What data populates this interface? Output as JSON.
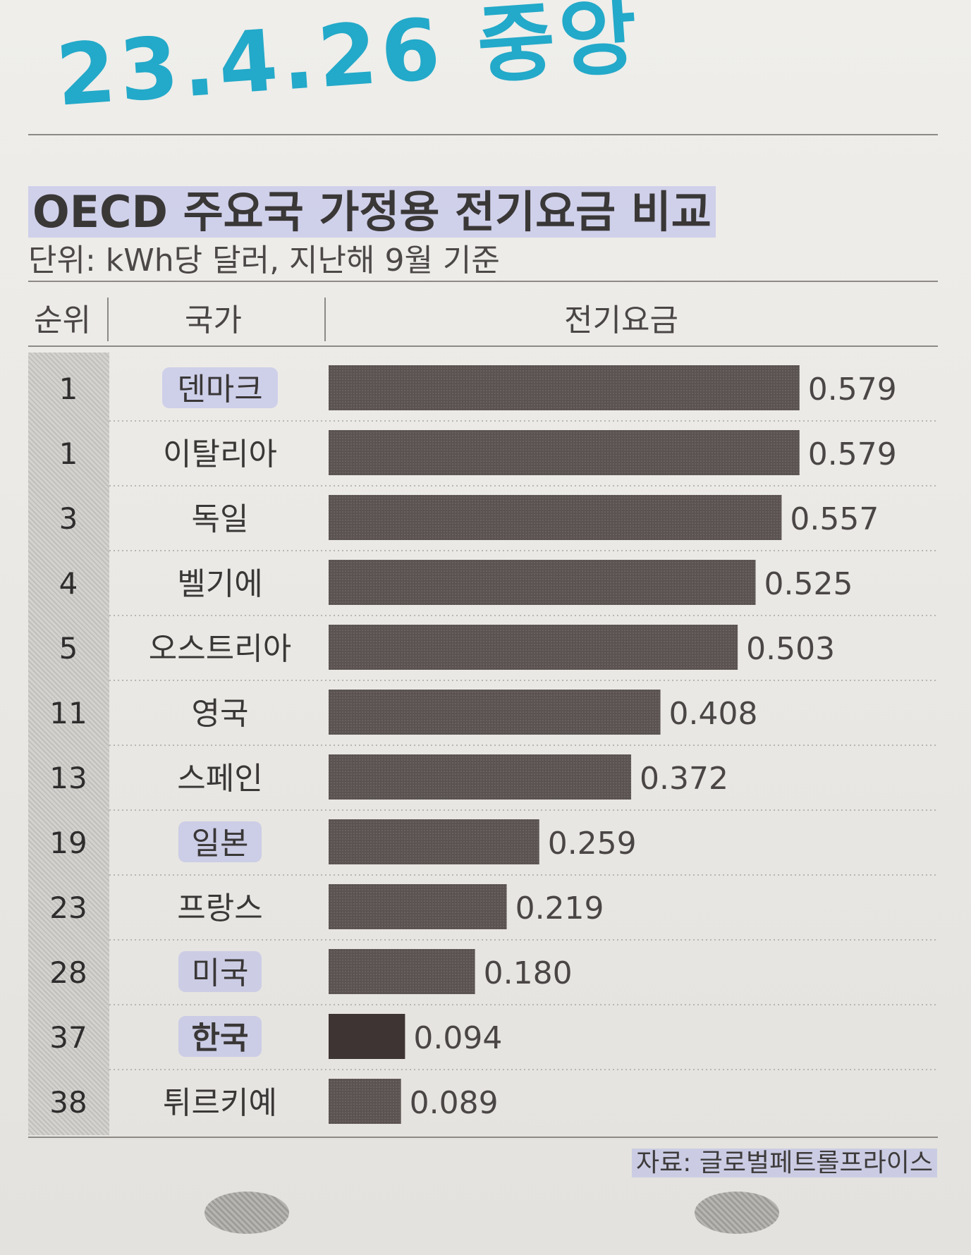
{
  "handwritten_note": "23.4.26 중앙",
  "chart_data": {
    "type": "bar",
    "orientation": "horizontal",
    "title": "OECD 주요국 가정용 전기요금 비교",
    "subtitle": "단위: kWh당 달러, 지난해 9월 기준",
    "columns": [
      "순위",
      "국가",
      "전기요금"
    ],
    "ranks": [
      "1",
      "1",
      "3",
      "4",
      "5",
      "11",
      "13",
      "19",
      "23",
      "28",
      "37",
      "38"
    ],
    "categories": [
      "덴마크",
      "이탈리아",
      "독일",
      "벨기에",
      "오스트리아",
      "영국",
      "스페인",
      "일본",
      "프랑스",
      "미국",
      "한국",
      "튀르키예"
    ],
    "values": [
      0.579,
      0.579,
      0.557,
      0.525,
      0.503,
      0.408,
      0.372,
      0.259,
      0.219,
      0.18,
      0.094,
      0.089
    ],
    "value_labels": [
      "0.579",
      "0.579",
      "0.557",
      "0.525",
      "0.503",
      "0.408",
      "0.372",
      "0.259",
      "0.219",
      "0.180",
      "0.094",
      "0.089"
    ],
    "highlighted": [
      "덴마크",
      "일본",
      "미국",
      "한국"
    ],
    "emphasized": "한국",
    "colors": {
      "bar": "#5a5351",
      "bar_emphasis": "#3e3434",
      "highlight": "#aaafeb"
    },
    "xlim": [
      0,
      0.6
    ],
    "source": "자료: 글로벌페트롤프라이스"
  }
}
